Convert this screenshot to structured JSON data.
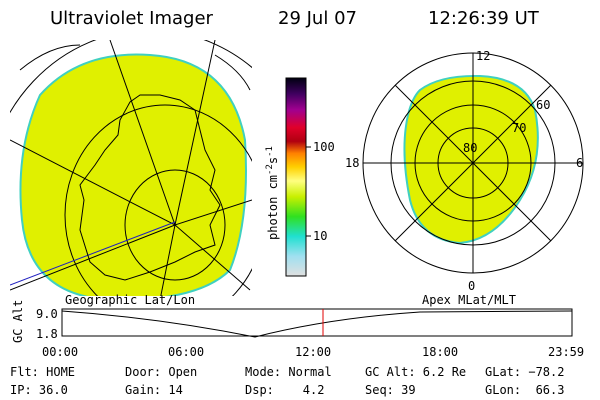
{
  "header": {
    "title": "Ultraviolet Imager",
    "date": "29 Jul 07",
    "time": "12:26:39 UT"
  },
  "colorbar": {
    "label": {
      "base": "photon cm",
      "exp1": "-2",
      "unit2": "s",
      "exp2": "-1"
    },
    "ticks": [
      "100",
      "10"
    ]
  },
  "polar_plot": {
    "mlt_labels": [
      "12",
      "18",
      "6",
      "0"
    ],
    "lat_labels": [
      "60",
      "70",
      "80"
    ]
  },
  "map_labels": {
    "left": "Geographic Lat/Lon",
    "right": "Apex MLat/MLT"
  },
  "altitude_plot": {
    "axis_label": "GC Alt",
    "ticks": [
      "9.0",
      "1.8"
    ],
    "time_labels": [
      "00:00",
      "06:00",
      "12:00",
      "18:00",
      "23:59"
    ]
  },
  "status": {
    "rows": [
      [
        "Flt: HOME",
        "Door: Open",
        "Mode: Normal",
        "GC Alt: 6.2 Re",
        "GLat: −78.2"
      ],
      [
        "IP: 36.0",
        "Gain: 14",
        "Dsp:    4.2",
        "Seq: 39",
        "GLon:  66.3"
      ]
    ]
  }
}
